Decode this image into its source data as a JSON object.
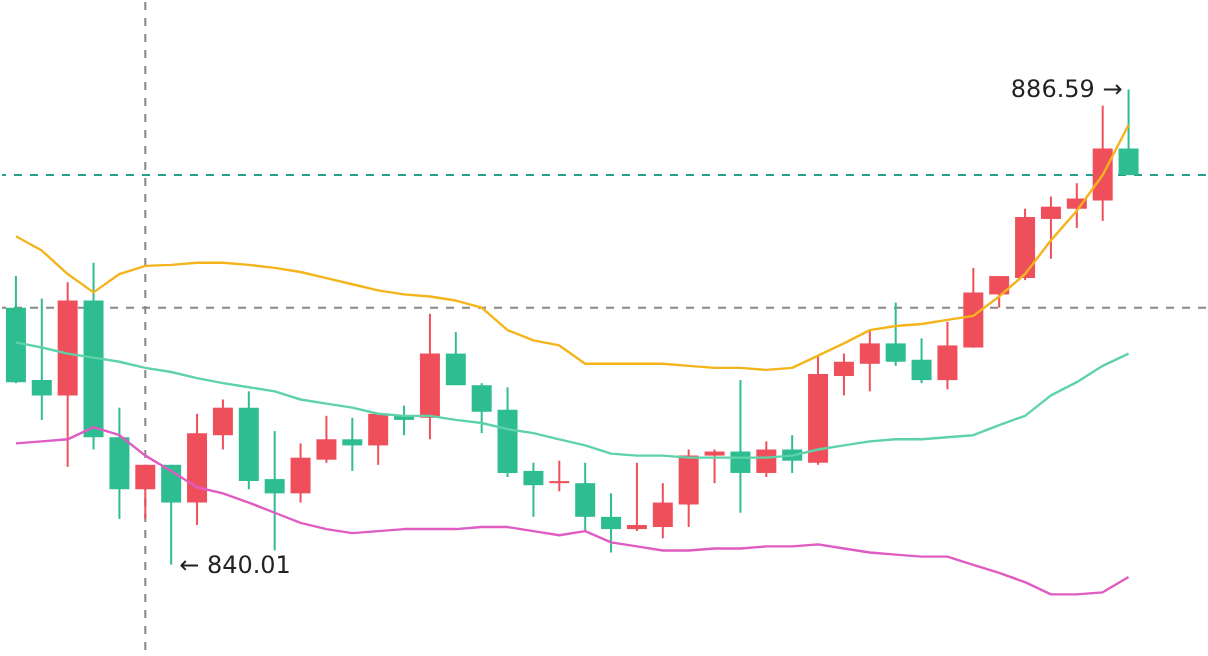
{
  "chart_data": {
    "type": "candlestick",
    "categories": [
      null,
      null,
      null,
      null,
      null,
      null,
      null,
      null,
      null,
      null,
      null,
      null,
      null,
      null,
      null,
      null,
      null,
      null,
      null,
      null,
      null,
      null,
      null,
      null,
      null,
      null,
      null,
      null,
      null,
      null,
      null,
      null,
      null,
      null,
      null,
      null,
      null,
      null,
      null,
      null,
      null,
      null,
      null,
      null
    ],
    "ohlc": [
      [
        865.2,
        868.3,
        857.8,
        857.9
      ],
      [
        858.1,
        866.1,
        854.2,
        856.6
      ],
      [
        856.6,
        867.7,
        849.6,
        865.9
      ],
      [
        865.9,
        869.6,
        851.3,
        852.5
      ],
      [
        852.5,
        855.4,
        844.5,
        847.4
      ],
      [
        847.4,
        849.8,
        844.5,
        849.8
      ],
      [
        849.8,
        849.8,
        840.01,
        846.1
      ],
      [
        846.1,
        854.8,
        843.9,
        852.9
      ],
      [
        852.7,
        856.2,
        851.3,
        855.4
      ],
      [
        855.4,
        857.0,
        847.4,
        848.2
      ],
      [
        848.4,
        853.1,
        841.4,
        847.0
      ],
      [
        847.0,
        851.9,
        846.1,
        850.5
      ],
      [
        850.3,
        854.6,
        850.0,
        852.3
      ],
      [
        852.3,
        854.4,
        849.2,
        851.7
      ],
      [
        851.7,
        854.8,
        849.8,
        854.8
      ],
      [
        854.6,
        855.6,
        852.7,
        854.2
      ],
      [
        854.4,
        864.6,
        852.3,
        860.7
      ],
      [
        860.7,
        862.8,
        857.6,
        857.6
      ],
      [
        857.6,
        857.8,
        852.9,
        855.0
      ],
      [
        855.2,
        857.4,
        848.6,
        849.0
      ],
      [
        849.2,
        850.0,
        844.7,
        847.8
      ],
      [
        848.0,
        850.2,
        847.2,
        848.2
      ],
      [
        848.0,
        850.0,
        843.3,
        844.7
      ],
      [
        844.7,
        847.0,
        841.2,
        843.5
      ],
      [
        843.5,
        850.0,
        843.3,
        843.9
      ],
      [
        843.7,
        848.0,
        842.6,
        846.1
      ],
      [
        845.9,
        851.3,
        843.7,
        850.7
      ],
      [
        850.7,
        851.3,
        848.0,
        851.1
      ],
      [
        851.1,
        858.1,
        845.1,
        849.0
      ],
      [
        849.0,
        852.1,
        848.6,
        851.3
      ],
      [
        851.3,
        852.7,
        849.0,
        850.2
      ],
      [
        850.0,
        860.5,
        849.8,
        858.7
      ],
      [
        858.5,
        860.7,
        856.6,
        859.9
      ],
      [
        859.7,
        863.0,
        857.0,
        861.7
      ],
      [
        861.7,
        865.7,
        859.5,
        859.9
      ],
      [
        860.1,
        862.2,
        857.8,
        858.1
      ],
      [
        858.1,
        863.8,
        857.2,
        861.5
      ],
      [
        861.3,
        869.1,
        861.3,
        866.7
      ],
      [
        866.5,
        868.3,
        865.2,
        868.3
      ],
      [
        868.1,
        874.9,
        867.9,
        874.1
      ],
      [
        873.9,
        876.1,
        870.0,
        875.1
      ],
      [
        874.9,
        877.4,
        873.0,
        875.9
      ],
      [
        875.7,
        885.0,
        873.7,
        880.8
      ],
      [
        880.8,
        886.59,
        878.2,
        878.2
      ]
    ],
    "colors": [
      "#2ebd91",
      "#2ebd91",
      "#ef4f5b",
      "#2ebd91",
      "#2ebd91",
      "#ef4f5b",
      "#2ebd91",
      "#ef4f5b",
      "#ef4f5b",
      "#2ebd91",
      "#2ebd91",
      "#ef4f5b",
      "#ef4f5b",
      "#2ebd91",
      "#ef4f5b",
      "#2ebd91",
      "#ef4f5b",
      "#2ebd91",
      "#2ebd91",
      "#2ebd91",
      "#2ebd91",
      "#ef4f5b",
      "#2ebd91",
      "#2ebd91",
      "#ef4f5b",
      "#ef4f5b",
      "#ef4f5b",
      "#ef4f5b",
      "#2ebd91",
      "#ef4f5b",
      "#2ebd91",
      "#ef4f5b",
      "#ef4f5b",
      "#ef4f5b",
      "#2ebd91",
      "#2ebd91",
      "#ef4f5b",
      "#ef4f5b",
      "#ef4f5b",
      "#ef4f5b",
      "#ef4f5b",
      "#ef4f5b",
      "#ef4f5b",
      "#2ebd91"
    ],
    "series": [
      {
        "type": "line",
        "color": "#f5b41c",
        "values": [
          872.2,
          870.8,
          868.5,
          866.7,
          868.5,
          869.3,
          869.4,
          869.6,
          869.6,
          869.4,
          869.1,
          868.7,
          868.1,
          867.5,
          866.9,
          866.5,
          866.3,
          865.9,
          865.2,
          863.0,
          862.0,
          861.5,
          859.7,
          859.7,
          859.7,
          859.7,
          859.5,
          859.3,
          859.3,
          859.1,
          859.3,
          860.5,
          861.7,
          863.0,
          863.4,
          863.6,
          864.0,
          864.4,
          866.3,
          868.5,
          871.8,
          874.7,
          878.2,
          883.1
        ]
      },
      {
        "type": "line",
        "color": "#5ed3a9",
        "values": [
          861.8,
          861.3,
          860.7,
          860.3,
          859.9,
          859.3,
          858.9,
          858.3,
          857.8,
          857.4,
          857.0,
          856.2,
          855.8,
          855.4,
          854.8,
          854.6,
          854.6,
          854.2,
          853.9,
          853.3,
          852.9,
          852.3,
          851.7,
          850.9,
          850.7,
          850.7,
          850.5,
          850.5,
          850.5,
          850.5,
          850.7,
          851.3,
          851.7,
          852.1,
          852.3,
          852.3,
          852.5,
          852.7,
          853.7,
          854.6,
          856.6,
          857.9,
          859.5,
          860.7
        ]
      },
      {
        "type": "line",
        "color": "#e05bc2",
        "values": [
          851.9,
          852.1,
          852.3,
          853.5,
          852.7,
          850.7,
          849.2,
          847.6,
          847.0,
          846.1,
          845.1,
          844.1,
          843.5,
          843.1,
          843.3,
          843.5,
          843.5,
          843.5,
          843.7,
          843.7,
          843.3,
          842.9,
          843.3,
          842.2,
          841.8,
          841.4,
          841.4,
          841.6,
          841.6,
          841.8,
          841.8,
          842.0,
          841.6,
          841.2,
          841.0,
          840.8,
          840.8,
          840.0,
          839.2,
          838.3,
          837.1,
          837.1,
          837.3,
          838.8
        ]
      }
    ],
    "ref_lines": [
      {
        "axis": "y",
        "value": 878.2,
        "color": "#2a9d8f",
        "line_style": "dashed"
      },
      {
        "axis": "y",
        "value": 865.2,
        "color": "#888888",
        "line_style": "dashed"
      }
    ],
    "annotations": [
      "886.59 →",
      "← 840.01"
    ]
  }
}
